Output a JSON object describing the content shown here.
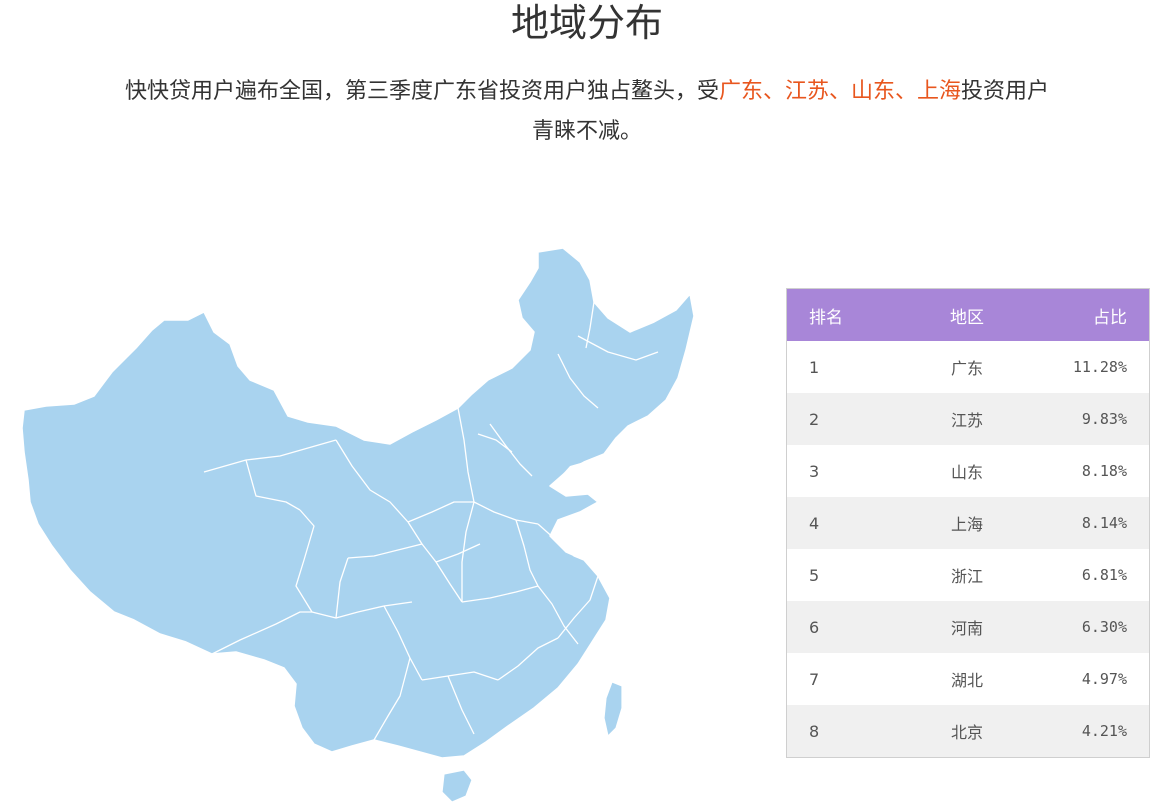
{
  "section": {
    "title": "地域分布",
    "intro_before": "快快贷用户遍布全国，第三季度广东省投资用户独占鳌头，受",
    "intro_highlight": "广东、江苏、山东、上海",
    "intro_after_line1": "投资用户",
    "intro_line2": "青睐不减。"
  },
  "colors": {
    "highlight": "#e8561e",
    "table_header_bg": "#a886d8",
    "map_fill": "#a9d3ef",
    "row_alt_bg": "#f0f0f0"
  },
  "map": {
    "icon": "china-map-icon"
  },
  "table": {
    "headers": {
      "rank": "排名",
      "region": "地区",
      "share": "占比"
    },
    "rows": [
      {
        "rank": "1",
        "region": "广东",
        "share": "11.28%"
      },
      {
        "rank": "2",
        "region": "江苏",
        "share": "9.83%"
      },
      {
        "rank": "3",
        "region": "山东",
        "share": "8.18%"
      },
      {
        "rank": "4",
        "region": "上海",
        "share": "8.14%"
      },
      {
        "rank": "5",
        "region": "浙江",
        "share": "6.81%"
      },
      {
        "rank": "6",
        "region": "河南",
        "share": "6.30%"
      },
      {
        "rank": "7",
        "region": "湖北",
        "share": "4.97%"
      },
      {
        "rank": "8",
        "region": "北京",
        "share": "4.21%"
      }
    ]
  }
}
